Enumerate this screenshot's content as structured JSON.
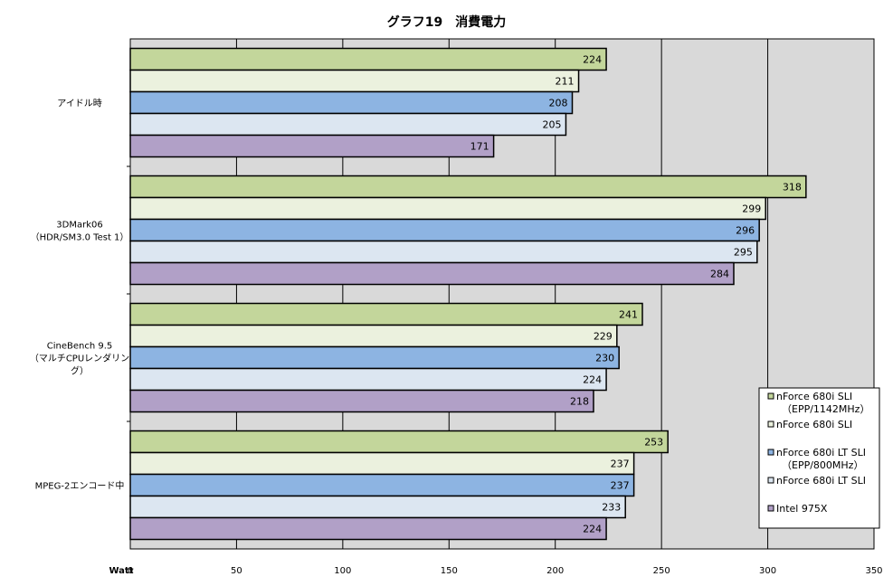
{
  "chart_data": {
    "type": "bar",
    "orientation": "horizontal",
    "title": "グラフ19　消費電力",
    "xlabel": "Watt",
    "xlim": [
      0,
      350
    ],
    "xticks": [
      0,
      50,
      100,
      150,
      200,
      250,
      300,
      350
    ],
    "grid": true,
    "legend_position": "right",
    "categories": [
      [
        "アイドル時"
      ],
      [
        "3DMark06",
        "（HDR/SM3.0 Test 1）"
      ],
      [
        "CineBench 9.5",
        "（マルチCPUレンダリン",
        "グ）"
      ],
      [
        "MPEG-2エンコード中"
      ]
    ],
    "series": [
      {
        "name": [
          "nForce 680i SLI",
          "（EPP/1142MHz）"
        ],
        "color": "#c3d69b",
        "values": [
          224,
          318,
          241,
          253
        ]
      },
      {
        "name": [
          "nForce 680i SLI"
        ],
        "color": "#ebf1de",
        "values": [
          211,
          299,
          229,
          237
        ]
      },
      {
        "name": [
          "nForce 680i LT SLI",
          "（EPP/800MHz）"
        ],
        "color": "#8db4e2",
        "values": [
          208,
          296,
          230,
          237
        ]
      },
      {
        "name": [
          "nForce 680i LT SLI"
        ],
        "color": "#dce6f1",
        "values": [
          205,
          295,
          224,
          233
        ]
      },
      {
        "name": [
          "Intel 975X"
        ],
        "color": "#b1a0c7",
        "values": [
          171,
          284,
          218,
          224
        ]
      }
    ]
  }
}
